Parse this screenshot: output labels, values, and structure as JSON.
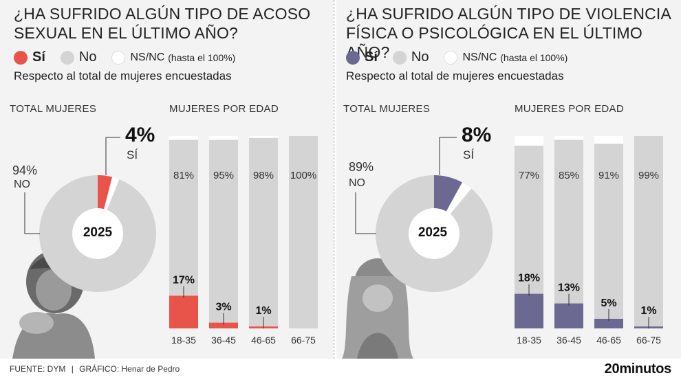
{
  "colors": {
    "yes_left": "#e8544a",
    "yes_right": "#6b6891",
    "no": "#d4d4d4",
    "nsnc": "#ffffff",
    "background": "#f3f3f3"
  },
  "legend": {
    "yes": "Sí",
    "no": "No",
    "nsnc": "NS/NC",
    "nsnc_note": "(hasta el 100%)"
  },
  "subtitle": "Respecto al total de mujeres encuestadas",
  "section_total": "TOTAL MUJERES",
  "section_age": "MUJERES POR EDAD",
  "donut_center": "2025",
  "footer": {
    "source_label": "FUENTE: DYM",
    "separator": "|",
    "graphic_label": "GRÁFICO: Henar de Pedro"
  },
  "brand": "20minutos",
  "chart_data": [
    {
      "type": "pie",
      "title": "¿HA SUFRIDO ALGÚN TIPO DE ACOSO SEXUAL EN EL ÚLTIMO AÑO?",
      "center_label": "2025",
      "slices": [
        {
          "name": "Sí",
          "value": 4,
          "label": "4%",
          "caption": "SÍ"
        },
        {
          "name": "NS/NC",
          "value": 2
        },
        {
          "name": "No",
          "value": 94,
          "label": "94%",
          "caption": "NO"
        }
      ]
    },
    {
      "type": "bar",
      "title": "MUJERES POR EDAD",
      "categories": [
        "18-35",
        "36-45",
        "46-65",
        "66-75"
      ],
      "series": [
        {
          "name": "Sí",
          "values": [
            17,
            3,
            1,
            0
          ],
          "labels": [
            "17%",
            "3%",
            "1%",
            ""
          ]
        },
        {
          "name": "No",
          "values": [
            81,
            95,
            98,
            100
          ],
          "labels": [
            "81%",
            "95%",
            "98%",
            "100%"
          ]
        },
        {
          "name": "NS/NC",
          "values": [
            2,
            2,
            1,
            0
          ]
        }
      ],
      "ylim": [
        0,
        100
      ]
    },
    {
      "type": "pie",
      "title": "¿HA SUFRIDO ALGÚN TIPO DE VIOLENCIA FÍSICA O PSICOLÓGICA EN EL ÚLTIMO AÑO?",
      "center_label": "2025",
      "slices": [
        {
          "name": "Sí",
          "value": 8,
          "label": "8%",
          "caption": "SÍ"
        },
        {
          "name": "NS/NC",
          "value": 3
        },
        {
          "name": "No",
          "value": 89,
          "label": "89%",
          "caption": "NO"
        }
      ]
    },
    {
      "type": "bar",
      "title": "MUJERES POR EDAD",
      "categories": [
        "18-35",
        "36-45",
        "46-65",
        "66-75"
      ],
      "series": [
        {
          "name": "Sí",
          "values": [
            18,
            13,
            5,
            1
          ],
          "labels": [
            "18%",
            "13%",
            "5%",
            "1%"
          ]
        },
        {
          "name": "No",
          "values": [
            77,
            85,
            91,
            99
          ],
          "labels": [
            "77%",
            "85%",
            "91%",
            "99%"
          ]
        },
        {
          "name": "NS/NC",
          "values": [
            5,
            2,
            4,
            0
          ]
        }
      ],
      "ylim": [
        0,
        100
      ]
    }
  ]
}
